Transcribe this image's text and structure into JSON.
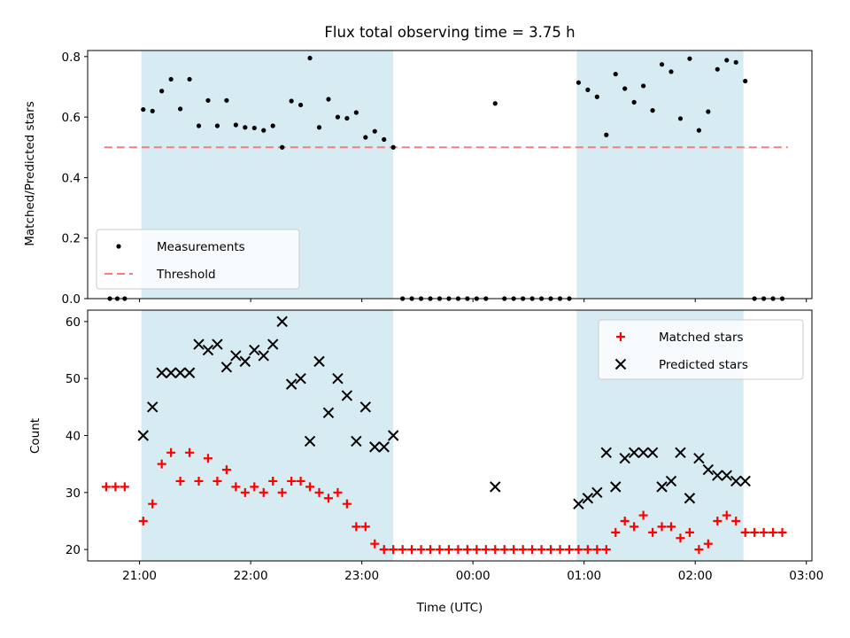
{
  "chart_data": [
    {
      "type": "scatter",
      "title": "Flux total observing time = 3.75 h",
      "xlabel": "",
      "ylabel": "Matched/Predicted stars",
      "ylim": [
        0,
        0.82
      ],
      "yticks": [
        "0.0",
        "0.2",
        "0.4",
        "0.6",
        "0.8"
      ],
      "xlim": [
        "20:32",
        "03:03"
      ],
      "shaded_intervals": [
        [
          "21:01",
          "23:17"
        ],
        [
          "00:56",
          "02:26"
        ]
      ],
      "shade_color": "#add8e6",
      "legend": {
        "position": "lower-left",
        "entries": [
          "Measurements",
          "Threshold"
        ]
      },
      "series": [
        {
          "name": "Measurements",
          "color": "#000000",
          "marker": "dot",
          "points": [
            [
              "20:44",
              0.0
            ],
            [
              "20:48",
              0.0
            ],
            [
              "20:52",
              0.0
            ],
            [
              "21:02",
              0.625
            ],
            [
              "21:07",
              0.62
            ],
            [
              "21:12",
              0.686
            ],
            [
              "21:17",
              0.725
            ],
            [
              "21:22",
              0.627
            ],
            [
              "21:27",
              0.725
            ],
            [
              "21:32",
              0.571
            ],
            [
              "21:37",
              0.655
            ],
            [
              "21:42",
              0.571
            ],
            [
              "21:47",
              0.655
            ],
            [
              "21:52",
              0.574
            ],
            [
              "21:57",
              0.566
            ],
            [
              "22:02",
              0.564
            ],
            [
              "22:07",
              0.556
            ],
            [
              "22:12",
              0.571
            ],
            [
              "22:17",
              0.5
            ],
            [
              "22:22",
              0.653
            ],
            [
              "22:27",
              0.64
            ],
            [
              "22:32",
              0.795
            ],
            [
              "22:37",
              0.566
            ],
            [
              "22:42",
              0.659
            ],
            [
              "22:47",
              0.6
            ],
            [
              "22:52",
              0.596
            ],
            [
              "22:57",
              0.615
            ],
            [
              "23:02",
              0.533
            ],
            [
              "23:07",
              0.553
            ],
            [
              "23:12",
              0.526
            ],
            [
              "23:17",
              0.5
            ],
            [
              "23:22",
              0.0
            ],
            [
              "23:27",
              0.0
            ],
            [
              "23:32",
              0.0
            ],
            [
              "23:37",
              0.0
            ],
            [
              "23:42",
              0.0
            ],
            [
              "23:47",
              0.0
            ],
            [
              "23:52",
              0.0
            ],
            [
              "23:57",
              0.0
            ],
            [
              "00:02",
              0.0
            ],
            [
              "00:07",
              0.0
            ],
            [
              "00:12",
              0.645
            ],
            [
              "00:17",
              0.0
            ],
            [
              "00:22",
              0.0
            ],
            [
              "00:27",
              0.0
            ],
            [
              "00:32",
              0.0
            ],
            [
              "00:37",
              0.0
            ],
            [
              "00:42",
              0.0
            ],
            [
              "00:47",
              0.0
            ],
            [
              "00:52",
              0.0
            ],
            [
              "00:57",
              0.714
            ],
            [
              "01:02",
              0.69
            ],
            [
              "01:07",
              0.667
            ],
            [
              "01:12",
              0.541
            ],
            [
              "01:17",
              0.742
            ],
            [
              "01:22",
              0.694
            ],
            [
              "01:27",
              0.649
            ],
            [
              "01:32",
              0.703
            ],
            [
              "01:37",
              0.622
            ],
            [
              "01:42",
              0.774
            ],
            [
              "01:47",
              0.75
            ],
            [
              "01:52",
              0.595
            ],
            [
              "01:57",
              0.793
            ],
            [
              "02:02",
              0.556
            ],
            [
              "02:07",
              0.618
            ],
            [
              "02:12",
              0.758
            ],
            [
              "02:17",
              0.788
            ],
            [
              "02:22",
              0.781
            ],
            [
              "02:27",
              0.719
            ],
            [
              "02:32",
              0.0
            ],
            [
              "02:37",
              0.0
            ],
            [
              "02:42",
              0.0
            ],
            [
              "02:47",
              0.0
            ]
          ]
        },
        {
          "name": "Threshold",
          "color": "#f08080",
          "style": "dashed",
          "points": [
            [
              "20:41",
              0.5
            ],
            [
              "02:50",
              0.5
            ]
          ]
        }
      ]
    },
    {
      "type": "scatter",
      "title": "",
      "xlabel": "Time (UTC)",
      "ylabel": "Count",
      "ylim": [
        18,
        62
      ],
      "yticks": [
        "20",
        "30",
        "40",
        "50",
        "60"
      ],
      "xlim": [
        "20:32",
        "03:03"
      ],
      "xticks": [
        "21:00",
        "22:00",
        "23:00",
        "00:00",
        "01:00",
        "02:00",
        "03:00"
      ],
      "shaded_intervals": [
        [
          "21:01",
          "23:17"
        ],
        [
          "00:56",
          "02:26"
        ]
      ],
      "shade_color": "#add8e6",
      "legend": {
        "position": "upper-right",
        "entries": [
          "Matched stars",
          "Predicted stars"
        ]
      },
      "series": [
        {
          "name": "Matched stars",
          "color": "#ff0000",
          "marker": "plus",
          "points": [
            [
              "20:42",
              31
            ],
            [
              "20:47",
              31
            ],
            [
              "20:52",
              31
            ],
            [
              "21:02",
              25
            ],
            [
              "21:07",
              28
            ],
            [
              "21:12",
              35
            ],
            [
              "21:17",
              37
            ],
            [
              "21:22",
              32
            ],
            [
              "21:27",
              37
            ],
            [
              "21:32",
              32
            ],
            [
              "21:37",
              36
            ],
            [
              "21:42",
              32
            ],
            [
              "21:47",
              34
            ],
            [
              "21:52",
              31
            ],
            [
              "21:57",
              30
            ],
            [
              "22:02",
              31
            ],
            [
              "22:07",
              30
            ],
            [
              "22:12",
              32
            ],
            [
              "22:17",
              30
            ],
            [
              "22:22",
              32
            ],
            [
              "22:27",
              32
            ],
            [
              "22:32",
              31
            ],
            [
              "22:37",
              30
            ],
            [
              "22:42",
              29
            ],
            [
              "22:47",
              30
            ],
            [
              "22:52",
              28
            ],
            [
              "22:57",
              24
            ],
            [
              "23:02",
              24
            ],
            [
              "23:07",
              21
            ],
            [
              "23:12",
              20
            ],
            [
              "23:17",
              20
            ],
            [
              "23:22",
              20
            ],
            [
              "23:27",
              20
            ],
            [
              "23:32",
              20
            ],
            [
              "23:37",
              20
            ],
            [
              "23:42",
              20
            ],
            [
              "23:47",
              20
            ],
            [
              "23:52",
              20
            ],
            [
              "23:57",
              20
            ],
            [
              "00:02",
              20
            ],
            [
              "00:07",
              20
            ],
            [
              "00:12",
              20
            ],
            [
              "00:17",
              20
            ],
            [
              "00:22",
              20
            ],
            [
              "00:27",
              20
            ],
            [
              "00:32",
              20
            ],
            [
              "00:37",
              20
            ],
            [
              "00:42",
              20
            ],
            [
              "00:47",
              20
            ],
            [
              "00:52",
              20
            ],
            [
              "00:57",
              20
            ],
            [
              "01:02",
              20
            ],
            [
              "01:07",
              20
            ],
            [
              "01:12",
              20
            ],
            [
              "01:17",
              23
            ],
            [
              "01:22",
              25
            ],
            [
              "01:27",
              24
            ],
            [
              "01:32",
              26
            ],
            [
              "01:37",
              23
            ],
            [
              "01:42",
              24
            ],
            [
              "01:47",
              24
            ],
            [
              "01:52",
              22
            ],
            [
              "01:57",
              23
            ],
            [
              "02:02",
              20
            ],
            [
              "02:07",
              21
            ],
            [
              "02:12",
              25
            ],
            [
              "02:17",
              26
            ],
            [
              "02:22",
              25
            ],
            [
              "02:27",
              23
            ],
            [
              "02:32",
              23
            ],
            [
              "02:37",
              23
            ],
            [
              "02:42",
              23
            ],
            [
              "02:47",
              23
            ]
          ]
        },
        {
          "name": "Predicted stars",
          "color": "#000000",
          "marker": "x",
          "points": [
            [
              "21:02",
              40
            ],
            [
              "21:07",
              45
            ],
            [
              "21:12",
              51
            ],
            [
              "21:17",
              51
            ],
            [
              "21:22",
              51
            ],
            [
              "21:27",
              51
            ],
            [
              "21:32",
              56
            ],
            [
              "21:37",
              55
            ],
            [
              "21:42",
              56
            ],
            [
              "21:47",
              52
            ],
            [
              "21:52",
              54
            ],
            [
              "21:57",
              53
            ],
            [
              "22:02",
              55
            ],
            [
              "22:07",
              54
            ],
            [
              "22:12",
              56
            ],
            [
              "22:17",
              60
            ],
            [
              "22:22",
              49
            ],
            [
              "22:27",
              50
            ],
            [
              "22:32",
              39
            ],
            [
              "22:37",
              53
            ],
            [
              "22:42",
              44
            ],
            [
              "22:47",
              50
            ],
            [
              "22:52",
              47
            ],
            [
              "22:57",
              39
            ],
            [
              "23:02",
              45
            ],
            [
              "23:07",
              38
            ],
            [
              "23:12",
              38
            ],
            [
              "23:17",
              40
            ],
            [
              "00:12",
              31
            ],
            [
              "00:57",
              28
            ],
            [
              "01:02",
              29
            ],
            [
              "01:07",
              30
            ],
            [
              "01:12",
              37
            ],
            [
              "01:17",
              31
            ],
            [
              "01:22",
              36
            ],
            [
              "01:27",
              37
            ],
            [
              "01:32",
              37
            ],
            [
              "01:37",
              37
            ],
            [
              "01:42",
              31
            ],
            [
              "01:47",
              32
            ],
            [
              "01:52",
              37
            ],
            [
              "01:57",
              29
            ],
            [
              "02:02",
              36
            ],
            [
              "02:07",
              34
            ],
            [
              "02:12",
              33
            ],
            [
              "02:17",
              33
            ],
            [
              "02:22",
              32
            ],
            [
              "02:27",
              32
            ]
          ]
        }
      ]
    }
  ]
}
